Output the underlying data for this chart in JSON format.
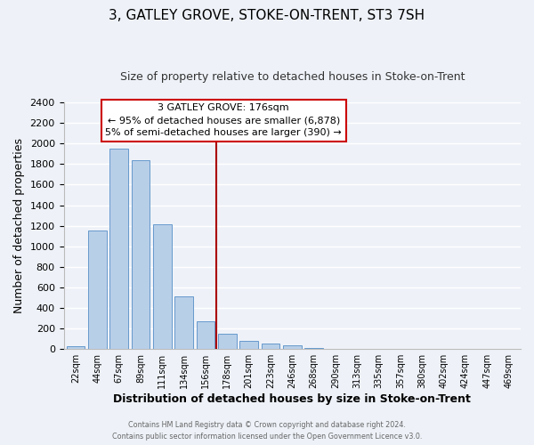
{
  "title": "3, GATLEY GROVE, STOKE-ON-TRENT, ST3 7SH",
  "subtitle": "Size of property relative to detached houses in Stoke-on-Trent",
  "xlabel": "Distribution of detached houses by size in Stoke-on-Trent",
  "ylabel": "Number of detached properties",
  "bar_labels": [
    "22sqm",
    "44sqm",
    "67sqm",
    "89sqm",
    "111sqm",
    "134sqm",
    "156sqm",
    "178sqm",
    "201sqm",
    "223sqm",
    "246sqm",
    "268sqm",
    "290sqm",
    "313sqm",
    "335sqm",
    "357sqm",
    "380sqm",
    "402sqm",
    "424sqm",
    "447sqm",
    "469sqm"
  ],
  "bar_heights": [
    25,
    1150,
    1950,
    1840,
    1210,
    510,
    270,
    150,
    80,
    50,
    35,
    10,
    5,
    2,
    1,
    0,
    0,
    0,
    0,
    0,
    0
  ],
  "bar_color": "#b8cfe8",
  "bar_edge_color": "#6699cc",
  "vline_color": "#aa0000",
  "ylim": [
    0,
    2400
  ],
  "yticks": [
    0,
    200,
    400,
    600,
    800,
    1000,
    1200,
    1400,
    1600,
    1800,
    2000,
    2200,
    2400
  ],
  "annotation_title": "3 GATLEY GROVE: 176sqm",
  "annotation_line1": "← 95% of detached houses are smaller (6,878)",
  "annotation_line2": "5% of semi-detached houses are larger (390) →",
  "footer1": "Contains HM Land Registry data © Crown copyright and database right 2024.",
  "footer2": "Contains public sector information licensed under the Open Government Licence v3.0.",
  "background_color": "#eef2f8",
  "grid_color": "#ffffff",
  "title_fontsize": 11,
  "subtitle_fontsize": 9,
  "xlabel_fontsize": 9,
  "ylabel_fontsize": 9
}
